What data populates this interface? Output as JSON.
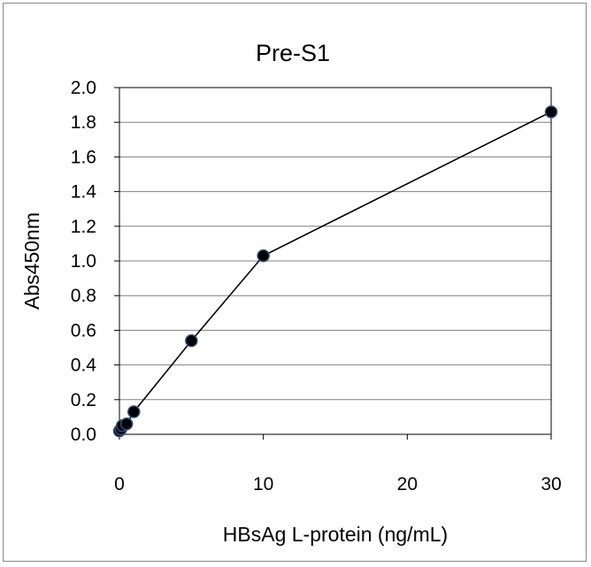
{
  "chart_data": {
    "type": "line",
    "title": "Pre-S1",
    "xlabel": "HBsAg L-protein (ng/mL)",
    "ylabel": "Abs450nm",
    "xlim": [
      0,
      30
    ],
    "ylim": [
      0,
      2.0
    ],
    "xticks": [
      "0",
      "10",
      "20",
      "30"
    ],
    "yticks": [
      "0.0",
      "0.2",
      "0.4",
      "0.6",
      "0.8",
      "1.0",
      "1.2",
      "1.4",
      "1.6",
      "1.8",
      "2.0"
    ],
    "grid": "horizontal",
    "series": [
      {
        "x": [
          0,
          0.1,
          0.2,
          0.5,
          1,
          5,
          10,
          30
        ],
        "y": [
          0.02,
          0.03,
          0.05,
          0.06,
          0.13,
          0.54,
          1.03,
          1.86
        ]
      }
    ],
    "colors": {
      "line": "#000000",
      "marker": "#000000",
      "marker_edge": "#2f4f7f"
    }
  }
}
